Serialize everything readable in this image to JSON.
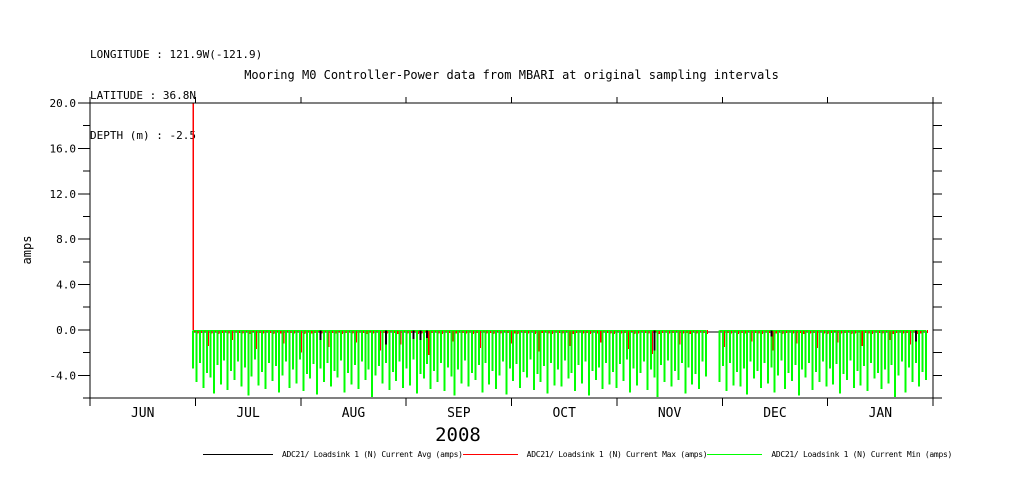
{
  "window": {
    "background": "#ffffff"
  },
  "header": {
    "longitude": "LONGITUDE : 121.9W(-121.9)",
    "latitude": "LATITUDE : 36.8N",
    "depth": "DEPTH (m) : -2.5"
  },
  "chart_data": {
    "type": "line",
    "title": "Mooring M0 Controller-Power data from MBARI at original sampling intervals",
    "ylabel": "amps",
    "year_label": "2008",
    "ylim": [
      -6,
      20
    ],
    "grid": false,
    "legend_position": "bottom",
    "yticks_major": {
      "values": [
        20,
        16,
        12,
        8,
        4,
        0,
        -4
      ],
      "labels": [
        "20.0",
        "16.0",
        "12.0",
        "8.0",
        "4.0",
        "0.0",
        "-4.0"
      ]
    },
    "ytick_minor_step": 2,
    "month_labels": [
      "JUN",
      "JUL",
      "AUG",
      "SEP",
      "OCT",
      "NOV",
      "DEC",
      "JAN"
    ],
    "x_domain_days": [
      0,
      245
    ],
    "series": [
      {
        "name": "ADC21/ Loadsink 1 (N) Current Avg (amps)",
        "color": "#000000",
        "role": "avg"
      },
      {
        "name": "ADC21/ Loadsink 1 (N) Current Max (amps)",
        "color": "#ff0000",
        "role": "max"
      },
      {
        "name": "ADC21/ Loadsink 1 (N) Current Min (amps)",
        "color": "#00ff00",
        "role": "min"
      }
    ],
    "spike": {
      "day": 30,
      "series": "max",
      "top_value": 20,
      "base_value": 0
    },
    "samples": {
      "note": "daily envelope values in amps; day 0 = start of JUN axis, data begins day 30 (Jul 1)",
      "start_day": 30,
      "step_days": 1,
      "avg_baseline": -0.2,
      "avg_dips": [
        {
          "day": 67,
          "value": -0.9
        },
        {
          "day": 86,
          "value": -1.3
        },
        {
          "day": 94,
          "value": -0.8
        },
        {
          "day": 96,
          "value": -0.9
        },
        {
          "day": 98,
          "value": -0.7
        },
        {
          "day": 164,
          "value": -1.8
        },
        {
          "day": 198,
          "value": -0.6
        },
        {
          "day": 240,
          "value": -1.0
        }
      ],
      "min": [
        -3.4,
        -4.6,
        -2.9,
        -5.1,
        -3.8,
        -4.2,
        -5.6,
        -3.1,
        -4.8,
        -2.7,
        -5.3,
        -3.6,
        -4.4,
        -2.8,
        -5.0,
        -3.3,
        -5.8,
        -4.1,
        -2.6,
        -4.9,
        -3.7,
        -5.2,
        -2.9,
        -4.5,
        -3.2,
        -5.5,
        -4.0,
        -2.8,
        -5.1,
        -3.5,
        -4.7,
        -2.6,
        -5.4,
        -3.9,
        -4.3,
        -3.0,
        -5.7,
        -3.4,
        -4.6,
        -2.9,
        -5.0,
        -3.6,
        -4.2,
        -2.7,
        -5.5,
        -3.8,
        -4.8,
        -3.1,
        -5.2,
        -2.8,
        -4.4,
        -3.5,
        -5.9,
        -4.0,
        -3.2,
        -4.7,
        -2.9,
        -5.3,
        -3.7,
        -4.5,
        -2.8,
        -5.1,
        -3.4,
        -4.9,
        -2.6,
        -5.6,
        -3.9,
        -4.3,
        -3.0,
        -5.2,
        -3.6,
        -4.6,
        -2.9,
        -5.4,
        -3.3,
        -4.1,
        -5.8,
        -3.5,
        -4.7,
        -2.7,
        -5.0,
        -3.8,
        -4.4,
        -3.1,
        -5.5,
        -2.9,
        -4.8,
        -3.6,
        -5.2,
        -4.0,
        -2.8,
        -5.7,
        -3.4,
        -4.5,
        -3.0,
        -5.1,
        -3.7,
        -4.2,
        -2.6,
        -5.3,
        -3.9,
        -4.6,
        -3.2,
        -5.6,
        -2.9,
        -4.9,
        -3.5,
        -5.0,
        -2.7,
        -4.3,
        -3.8,
        -5.4,
        -3.1,
        -4.7,
        -2.8,
        -5.8,
        -3.6,
        -4.4,
        -3.3,
        -5.2,
        -2.9,
        -4.8,
        -3.7,
        -5.1,
        -3.0,
        -4.5,
        -2.6,
        -5.5,
        -3.4,
        -4.9,
        -3.8,
        -2.8,
        -5.3,
        -3.5,
        -4.2,
        -5.9,
        -3.1,
        -4.6,
        -2.7,
        -5.0,
        -3.6,
        -4.4,
        -2.9,
        -5.6,
        -3.3,
        -4.8,
        -3.9,
        -5.2,
        -2.8,
        -4.1,
        null,
        null,
        null,
        -4.6,
        -3.2,
        -5.4,
        -2.9,
        -4.9,
        -3.7,
        -5.0,
        -3.4,
        -5.7,
        -2.8,
        -4.3,
        -3.6,
        -5.1,
        -2.9,
        -4.7,
        -3.3,
        -5.5,
        -4.0,
        -2.7,
        -5.2,
        -3.8,
        -4.5,
        -3.1,
        -5.8,
        -3.5,
        -4.2,
        -2.9,
        -5.3,
        -3.7,
        -4.6,
        -2.8,
        -5.0,
        -3.4,
        -4.8,
        -3.0,
        -5.6,
        -3.9,
        -4.4,
        -2.7,
        -5.1,
        -3.6,
        -4.9,
        -3.2,
        -5.4,
        -2.9,
        -4.3,
        -3.8,
        -5.2,
        -3.5,
        -4.7,
        -3.1,
        -5.9,
        -4.0,
        -2.8,
        -5.5,
        -3.3,
        -4.6,
        -2.9,
        -5.0,
        -3.7,
        -4.4
      ],
      "max": [
        -0.2,
        -0.3,
        -0.25,
        -0.2,
        -1.4,
        -0.3,
        -0.2,
        -0.35,
        -0.25,
        -0.2,
        -0.3,
        -0.9,
        -0.2,
        -0.25,
        -0.3,
        -0.2,
        -0.35,
        -0.2,
        -1.7,
        -0.25,
        -0.3,
        -0.2,
        -0.25,
        -0.35,
        -0.2,
        -0.3,
        -1.2,
        -0.2,
        -0.25,
        -0.3,
        -0.2,
        -2.0,
        -0.35,
        -0.2,
        -0.3,
        -0.25,
        -0.2,
        -0.3,
        -0.2,
        -1.5,
        -0.25,
        -0.3,
        -0.2,
        -0.35,
        -0.25,
        -0.2,
        -0.3,
        -1.1,
        -0.2,
        -0.25,
        -0.35,
        -0.2,
        -0.3,
        -0.2,
        -1.8,
        -0.25,
        -0.3,
        -0.2,
        -0.25,
        -0.35,
        -1.3,
        -0.2,
        -0.3,
        -0.25,
        -0.2,
        -0.35,
        -0.3,
        -0.2,
        -2.2,
        -0.25,
        -0.2,
        -0.3,
        -0.35,
        -0.2,
        -0.25,
        -1.0,
        -0.3,
        -0.2,
        -0.25,
        -0.3,
        -0.2,
        -0.35,
        -0.25,
        -1.6,
        -0.2,
        -0.3,
        -0.25,
        -0.35,
        -0.2,
        -0.3,
        -0.2,
        -0.25,
        -1.2,
        -0.3,
        -0.35,
        -0.2,
        -0.25,
        -0.3,
        -0.2,
        -0.35,
        -1.9,
        -0.25,
        -0.2,
        -0.3,
        -0.35,
        -0.2,
        -0.25,
        -0.3,
        -0.2,
        -1.4,
        -0.35,
        -0.25,
        -0.2,
        -0.3,
        -0.25,
        -0.35,
        -0.2,
        -0.3,
        -1.1,
        -0.2,
        -0.25,
        -0.3,
        -0.35,
        -0.2,
        -0.3,
        -0.25,
        -1.7,
        -0.2,
        -0.35,
        -0.3,
        -0.2,
        -0.25,
        -0.3,
        -2.1,
        -0.2,
        -0.35,
        -0.25,
        -0.2,
        -0.3,
        -0.25,
        -0.2,
        -1.3,
        -0.3,
        -0.25,
        -0.35,
        -0.2,
        -0.3,
        -0.2,
        -0.25,
        -0.35,
        null,
        null,
        null,
        -0.2,
        -1.5,
        -0.25,
        -0.3,
        -0.2,
        -0.35,
        -0.25,
        -0.3,
        -0.2,
        -1.0,
        -0.25,
        -0.3,
        -0.35,
        -0.2,
        -0.25,
        -1.8,
        -0.3,
        -0.2,
        -0.35,
        -0.25,
        -0.2,
        -0.3,
        -1.2,
        -0.25,
        -0.35,
        -0.2,
        -0.3,
        -0.25,
        -1.6,
        -0.2,
        -0.3,
        -0.35,
        -0.25,
        -0.2,
        -1.1,
        -0.3,
        -0.25,
        -0.2,
        -0.35,
        -0.3,
        -0.2,
        -1.4,
        -0.25,
        -0.3,
        -0.35,
        -0.2,
        -0.25,
        -0.3,
        -0.2,
        -0.9,
        -0.35,
        -0.25,
        -0.2,
        -0.3,
        -0.25,
        -1.3,
        -0.2,
        -0.35,
        -0.3,
        -0.2,
        -0.25
      ]
    }
  }
}
